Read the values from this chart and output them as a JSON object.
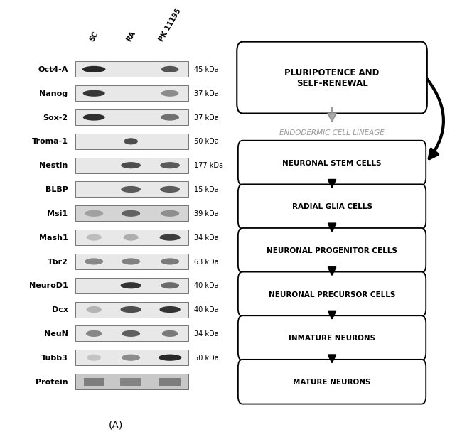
{
  "left_panel": {
    "row_labels": [
      "Oct4-A",
      "Nanog",
      "Sox-2",
      "Troma-1",
      "Nestin",
      "BLBP",
      "Msi1",
      "Mash1",
      "Tbr2",
      "NeuroD1",
      "Dcx",
      "NeuN",
      "Tubb3",
      "Protein"
    ],
    "col_labels": [
      "SC",
      "RA",
      "PK 11195"
    ],
    "kda_labels": [
      "45 kDa",
      "37 kDa",
      "37 kDa",
      "50 kDa",
      "177 kDa",
      "15 kDa",
      "39 kDa",
      "34 kDa",
      "63 kDa",
      "40 kDa",
      "40 kDa",
      "34 kDa",
      "50 kDa",
      ""
    ],
    "caption": "(A)"
  },
  "right_panel": {
    "top_box_text": "PLURIPOTENCE AND\nSELF-RENEWAL",
    "endodermic_text": "ENDODERMIC CELL LINEAGE",
    "flow_boxes": [
      "NEURONAL STEM CELLS",
      "RADIAL GLIA CELLS",
      "NEURONAL PROGENITOR CELLS",
      "NEURONAL PRECURSOR CELLS",
      "INMATURE NEURONS",
      "MATURE NEURONS"
    ]
  },
  "bg_color": "#ffffff",
  "font_size_label": 8,
  "font_size_kda": 7,
  "font_size_col": 7
}
